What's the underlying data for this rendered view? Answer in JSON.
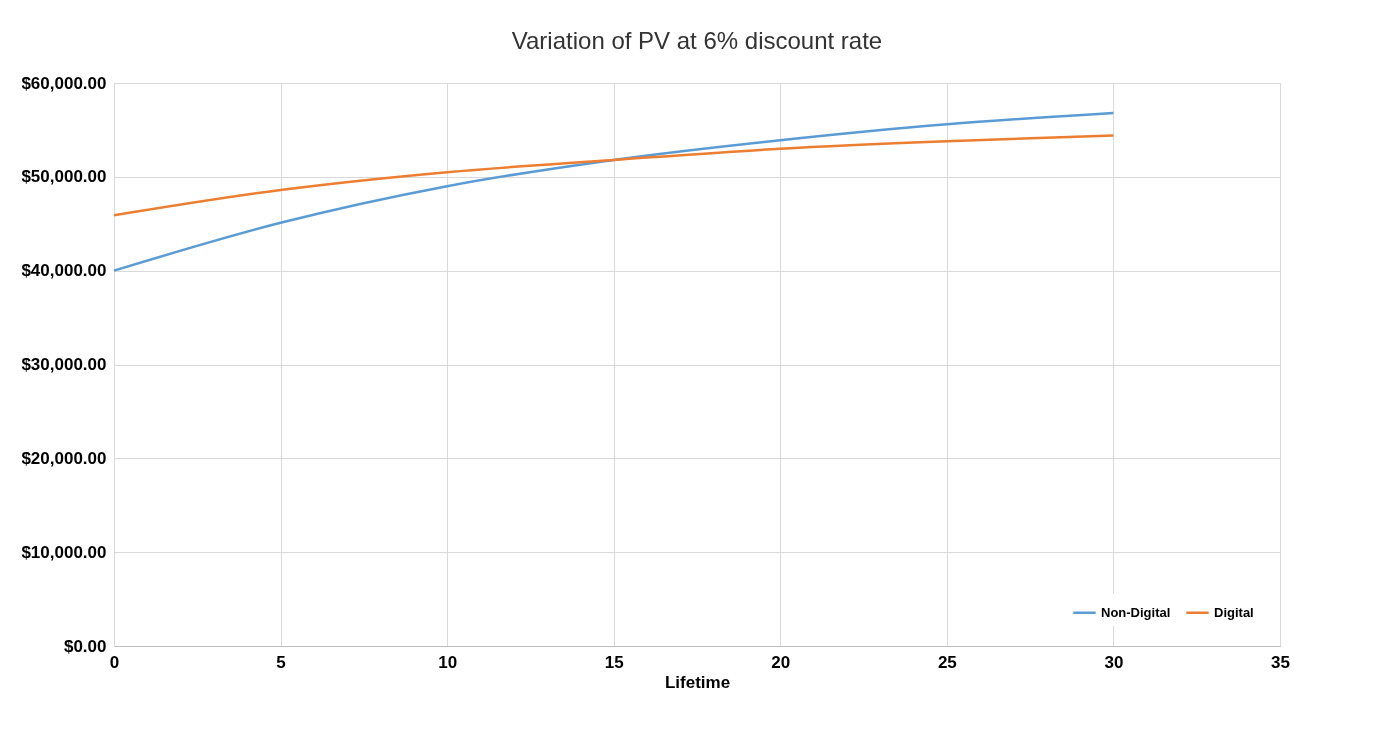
{
  "chart_data": {
    "type": "line",
    "title": "Variation of PV at 6% discount rate",
    "xlabel": "Lifetime",
    "x": [
      0,
      5,
      10,
      15,
      20,
      25,
      30
    ],
    "series": [
      {
        "name": "Non-Digital",
        "color": "#5b9bd5",
        "values": [
          40000,
          45100,
          49000,
          51800,
          53900,
          55600,
          56800
        ]
      },
      {
        "name": "Digital",
        "color": "#ed7d31",
        "values": [
          45900,
          48600,
          50500,
          51800,
          53000,
          53800,
          54400
        ]
      }
    ],
    "xlim": [
      0,
      35
    ],
    "xticks": [
      0,
      5,
      10,
      15,
      20,
      25,
      30,
      35
    ],
    "ylim": [
      0,
      60000
    ],
    "yticks": [
      {
        "value": 0,
        "label": "$0.00"
      },
      {
        "value": 10000,
        "label": "$10,000.00"
      },
      {
        "value": 20000,
        "label": "$20,000.00"
      },
      {
        "value": 30000,
        "label": "$30,000.00"
      },
      {
        "value": 40000,
        "label": "$40,000.00"
      },
      {
        "value": 50000,
        "label": "$50,000.00"
      },
      {
        "value": 60000,
        "label": "$60,000.00"
      }
    ],
    "grid": true,
    "legend": "bottom right",
    "marker": "none",
    "line_style": "solid"
  }
}
